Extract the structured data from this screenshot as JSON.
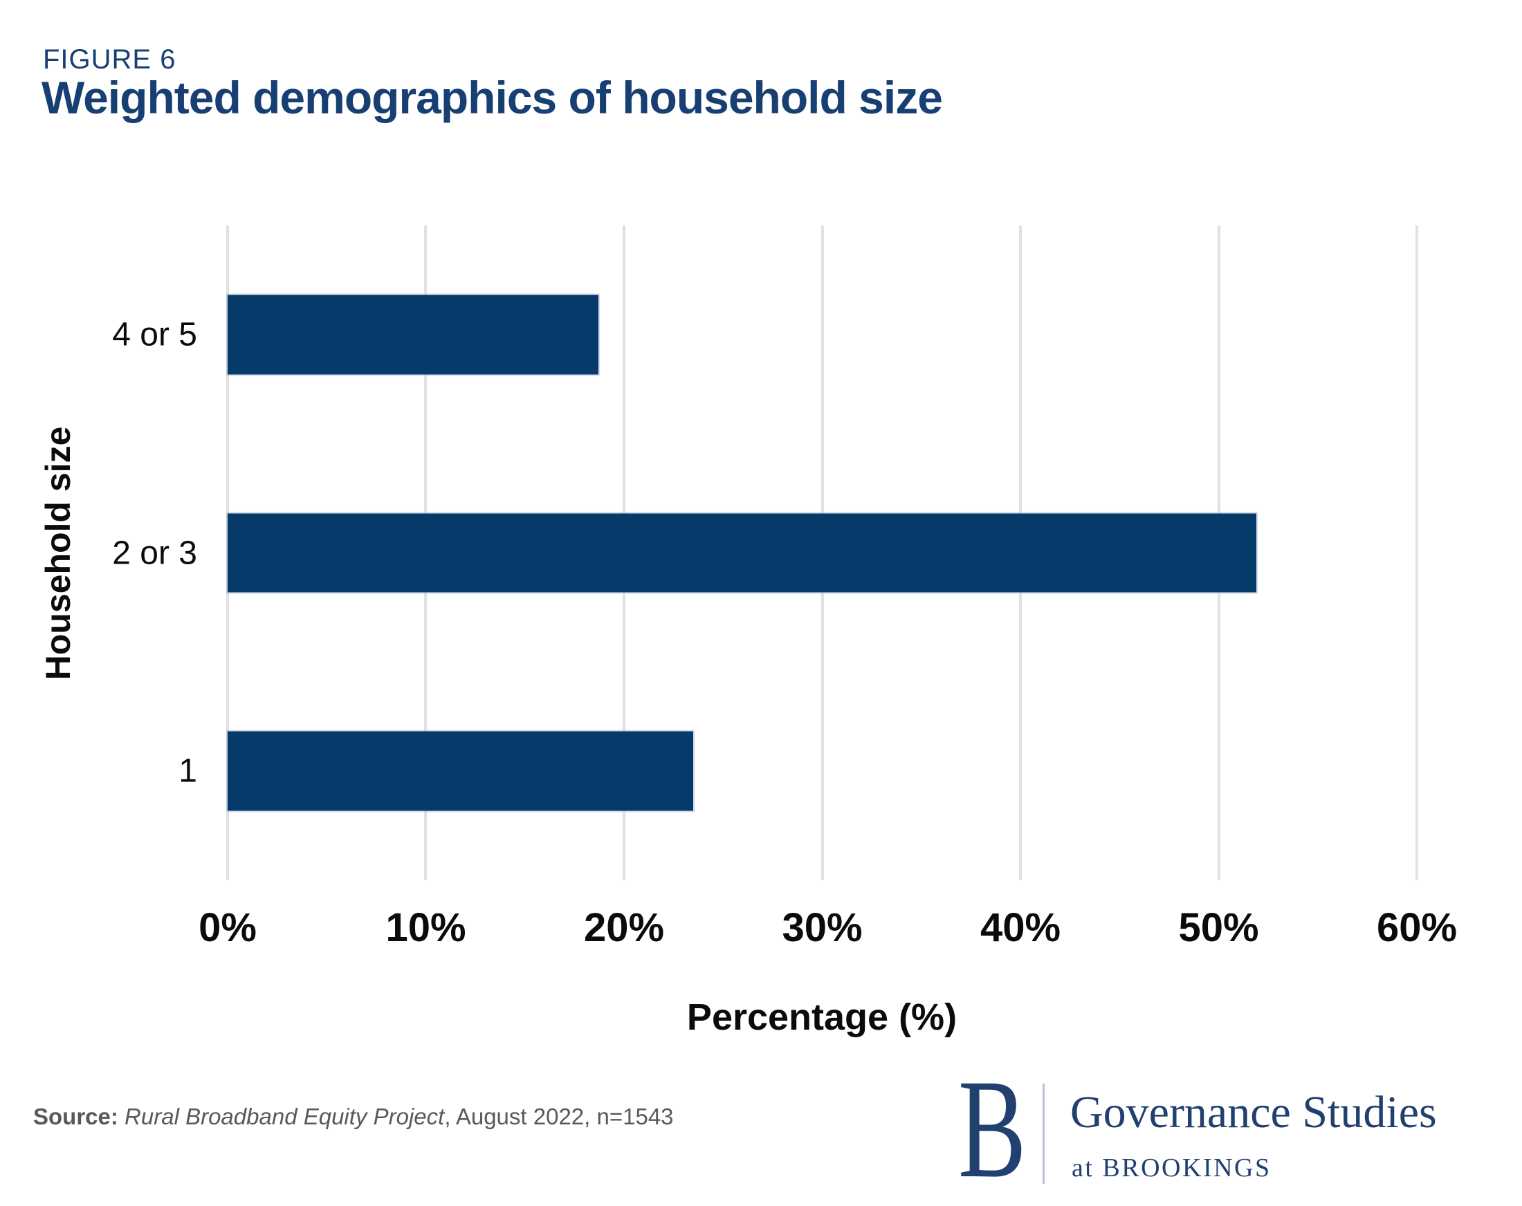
{
  "figure": {
    "label": "FIGURE 6",
    "title": "Weighted demographics of household size"
  },
  "chart_data": {
    "type": "bar",
    "orientation": "horizontal",
    "title": "Weighted demographics of household size",
    "categories": [
      "4 or 5",
      "2 or 3",
      "1"
    ],
    "values": [
      18.7,
      51.9,
      23.5
    ],
    "xlabel": "Percentage (%)",
    "ylabel": "Household size",
    "xlim": [
      0,
      60
    ],
    "x_ticks": [
      0,
      10,
      20,
      30,
      40,
      50,
      60
    ],
    "x_tick_suffix": "%",
    "grid": true,
    "legend_position": "none",
    "bar_color": "#053A6B"
  },
  "source": {
    "prefix": "Source: ",
    "name": "Rural Broadband Equity Project",
    "suffix": ", August 2022, n=1543"
  },
  "logo": {
    "b": "B",
    "org": "Governance Studies",
    "sub": "at BROOKINGS"
  },
  "colors": {
    "title_navy": "#173F73",
    "bar_navy": "#053A6B",
    "logo_navy": "#21406F",
    "gridline": "#E1E1E4",
    "source_gray": "#58595B",
    "divider": "#B6C2D4",
    "text_black": "#0B0B0B"
  }
}
